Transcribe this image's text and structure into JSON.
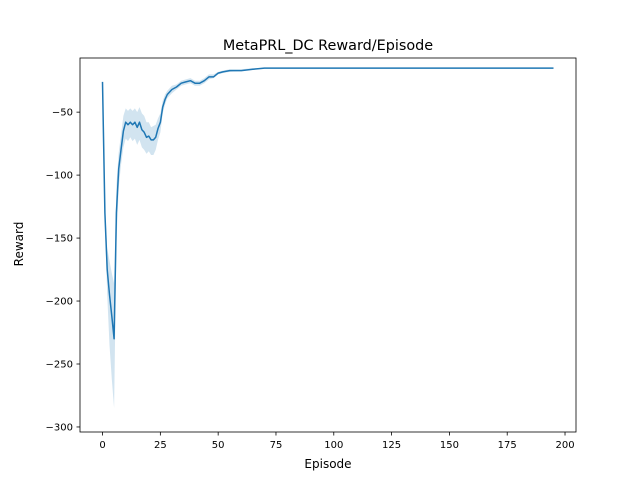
{
  "chart_data": {
    "type": "line",
    "title": "MetaPRL_DC Reward/Episode",
    "xlabel": "Episode",
    "ylabel": "Reward",
    "xlim": [
      -9.75,
      204.75
    ],
    "ylim": [
      -304,
      -7
    ],
    "xticks": [
      0,
      25,
      50,
      75,
      100,
      125,
      150,
      175,
      200
    ],
    "xtick_labels": [
      "0",
      "25",
      "50",
      "75",
      "100",
      "125",
      "150",
      "175",
      "200"
    ],
    "yticks": [
      -300,
      -250,
      -200,
      -150,
      -100,
      -50
    ],
    "ytick_labels": [
      "−300",
      "−250",
      "−200",
      "−150",
      "−100",
      "−50"
    ],
    "grid": false,
    "legend": "none",
    "line_color": "#1f77b4",
    "band_color": "#1f77b4",
    "band_opacity": 0.2,
    "series": [
      {
        "x": [
          0,
          1,
          2,
          3,
          4,
          5,
          6,
          7,
          8,
          9,
          10,
          11,
          12,
          13,
          14,
          15,
          16,
          17,
          18,
          19,
          20,
          21,
          22,
          23,
          24,
          25,
          26,
          27,
          28,
          29,
          30,
          32,
          34,
          36,
          38,
          40,
          42,
          44,
          46,
          48,
          50,
          52,
          55,
          60,
          65,
          70,
          80,
          100,
          120,
          140,
          160,
          180,
          195
        ],
        "y": [
          -26,
          -130,
          -175,
          -195,
          -212,
          -230,
          -130,
          -95,
          -80,
          -65,
          -58,
          -60,
          -58,
          -60,
          -58,
          -62,
          -58,
          -64,
          -66,
          -70,
          -69,
          -72,
          -72,
          -70,
          -63,
          -58,
          -46,
          -40,
          -36,
          -34,
          -32,
          -30,
          -27,
          -26,
          -25,
          -27,
          -27,
          -25,
          -22,
          -22,
          -19,
          -18,
          -17,
          -17,
          -16,
          -15,
          -15,
          -15,
          -15,
          -15,
          -15,
          -15,
          -15
        ],
        "lower": [
          -26,
          -138,
          -195,
          -235,
          -262,
          -285,
          -155,
          -110,
          -92,
          -78,
          -71,
          -73,
          -70,
          -73,
          -71,
          -76,
          -72,
          -78,
          -80,
          -83,
          -81,
          -84,
          -84,
          -80,
          -72,
          -66,
          -51,
          -44,
          -39,
          -37,
          -35,
          -32,
          -29,
          -28,
          -27,
          -29,
          -29,
          -27,
          -24,
          -23,
          -20,
          -19,
          -18,
          -17,
          -16,
          -15,
          -15,
          -15,
          -15,
          -15,
          -15,
          -15,
          -15
        ],
        "upper": [
          -26,
          -122,
          -158,
          -168,
          -178,
          -186,
          -108,
          -82,
          -68,
          -53,
          -47,
          -49,
          -47,
          -49,
          -47,
          -50,
          -46,
          -51,
          -53,
          -58,
          -58,
          -62,
          -61,
          -60,
          -55,
          -51,
          -41,
          -36,
          -33,
          -31,
          -29,
          -28,
          -25,
          -24,
          -23,
          -25,
          -25,
          -23,
          -20,
          -20,
          -18,
          -17,
          -16,
          -16,
          -15,
          -15,
          -15,
          -15,
          -15,
          -15,
          -15,
          -15,
          -15
        ]
      }
    ]
  }
}
